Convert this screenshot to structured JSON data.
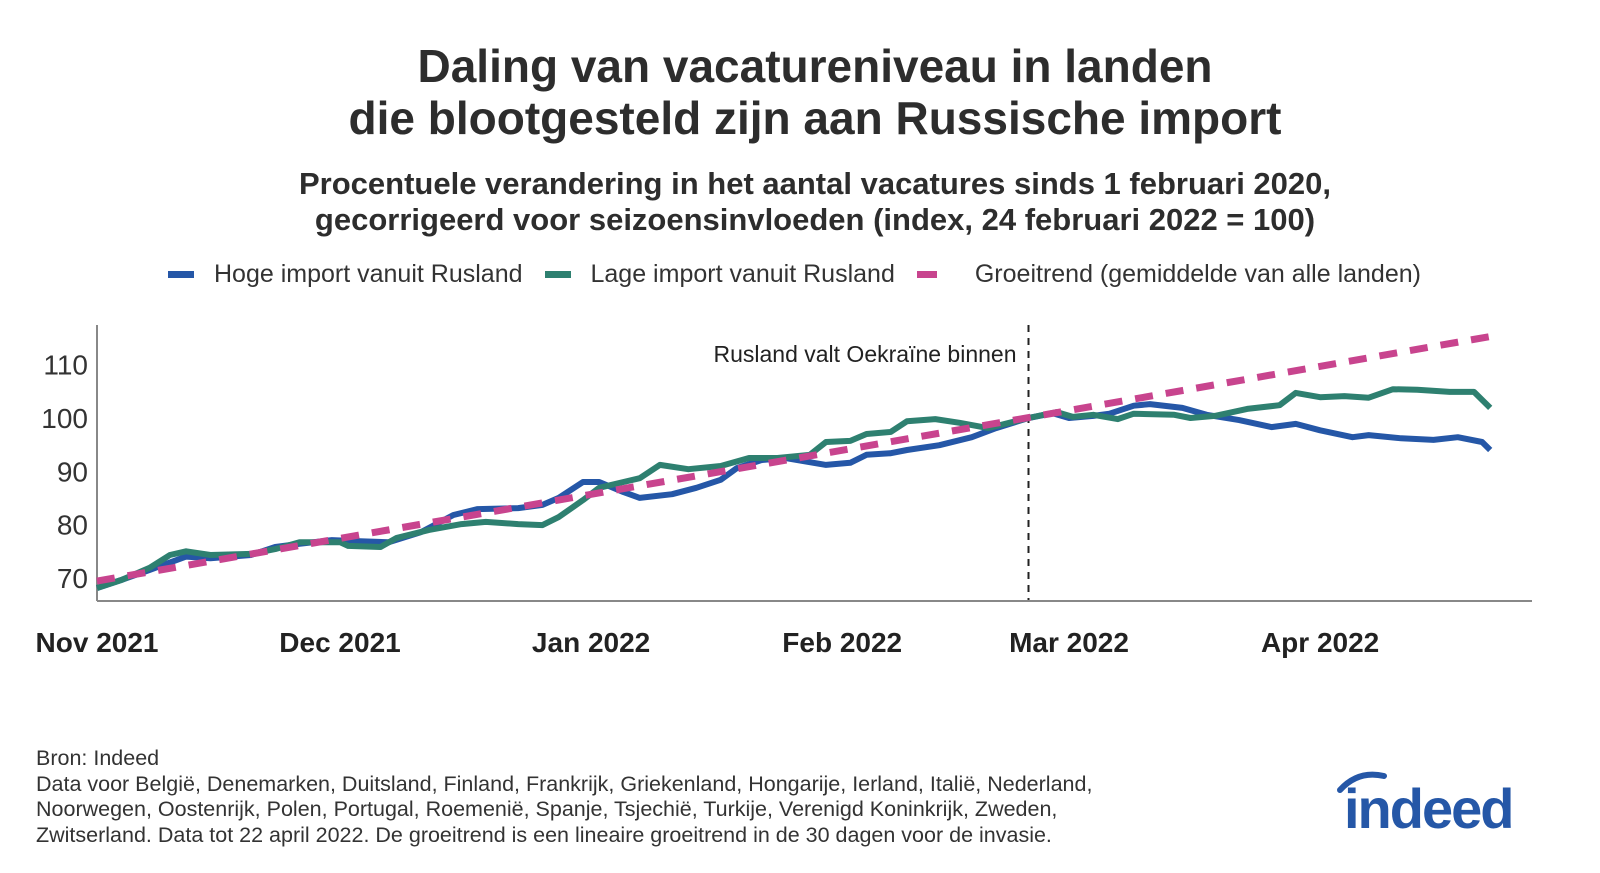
{
  "chart_data": {
    "type": "line",
    "title": "Daling van vacatureniveau in landen die blootgesteld zijn aan Russische import",
    "title_lines": [
      "Daling van vacatureniveau in landen",
      "die blootgesteld zijn aan Russische import"
    ],
    "subtitle_lines": [
      "Procentuele verandering in het aantal vacatures sinds 1 februari 2020,",
      "gecorrigeerd voor seizoensinvloeden (index, 24 februari 2022 = 100)"
    ],
    "x_unit": "days since 2021-11-01",
    "xlim": [
      0,
      177
    ],
    "ylim": [
      67,
      118
    ],
    "y_ticks": [
      70,
      80,
      90,
      100,
      110
    ],
    "x_ticks": [
      {
        "day": 0,
        "label": "Nov 2021"
      },
      {
        "day": 30,
        "label": "Dec 2021"
      },
      {
        "day": 61,
        "label": "Jan 2022"
      },
      {
        "day": 92,
        "label": "Feb 2022"
      },
      {
        "day": 120,
        "label": "Mar 2022"
      },
      {
        "day": 151,
        "label": "Apr 2022"
      }
    ],
    "annotation": {
      "day": 115,
      "label": "Rusland valt Oekraïne binnen"
    },
    "legend_position": "top",
    "series": [
      {
        "name": "Hoge import vanuit Rusland",
        "color": "#2557a7",
        "style": "solid",
        "x": [
          0,
          3,
          6.5,
          11,
          14,
          19,
          22,
          25,
          29,
          32,
          36,
          40,
          44,
          47,
          52,
          55,
          57,
          60,
          62,
          65,
          67,
          71,
          74,
          77,
          79,
          82,
          85,
          88,
          90,
          93,
          95,
          98,
          100,
          104,
          108,
          111,
          115,
          118,
          120,
          123,
          125,
          128,
          130,
          134,
          137,
          141,
          145,
          148,
          151,
          155,
          157,
          161,
          165,
          168,
          171,
          172
        ],
        "y": [
          68.1,
          69.6,
          71.5,
          74.0,
          73.7,
          74.3,
          75.8,
          76.4,
          77.1,
          76.9,
          76.7,
          78.6,
          81.8,
          82.9,
          83.1,
          83.7,
          85.0,
          88.0,
          88.0,
          86.1,
          85.0,
          85.7,
          86.9,
          88.4,
          90.6,
          92.1,
          92.5,
          91.7,
          91.2,
          91.6,
          93.1,
          93.4,
          94.0,
          94.9,
          96.4,
          98.1,
          100,
          100.9,
          100,
          100.4,
          100.8,
          102.3,
          102.6,
          101.9,
          100.6,
          99.6,
          98.3,
          98.9,
          97.7,
          96.4,
          96.8,
          96.2,
          95.9,
          96.4,
          95.5,
          94.0
        ]
      },
      {
        "name": "Lage import vanuit Rusland",
        "color": "#2e8070",
        "style": "solid",
        "x": [
          0,
          3,
          6.5,
          9,
          11,
          14,
          19,
          22,
          25,
          30,
          31,
          35,
          37,
          41,
          45,
          48,
          52,
          55,
          57,
          60,
          62,
          65,
          67,
          69.5,
          73,
          77,
          80.5,
          84,
          88,
          90,
          93,
          95,
          98,
          100,
          103.5,
          106.5,
          110,
          115,
          118.5,
          120.5,
          123,
          126,
          128,
          133,
          135,
          138,
          142,
          146,
          148,
          151,
          154,
          157,
          160,
          163,
          167,
          170,
          172
        ],
        "y": [
          68.1,
          69.6,
          71.9,
          74.3,
          75.0,
          74.3,
          74.5,
          75.4,
          76.7,
          76.7,
          76.0,
          75.8,
          77.5,
          79.0,
          80.1,
          80.5,
          80.1,
          79.9,
          81.4,
          84.6,
          86.9,
          88.0,
          88.7,
          91.2,
          90.4,
          91.0,
          92.5,
          92.5,
          93.1,
          95.5,
          95.7,
          97.0,
          97.4,
          99.4,
          99.8,
          99.1,
          98.1,
          100,
          101.1,
          100.2,
          100.6,
          99.8,
          100.8,
          100.6,
          100,
          100.4,
          101.7,
          102.4,
          104.7,
          103.9,
          104.1,
          103.8,
          105.4,
          105.3,
          104.9,
          104.9,
          101.9
        ]
      },
      {
        "name": "Groeitrend (gemiddelde van alle landen)",
        "color": "#c8448e",
        "style": "dashed",
        "x": [
          0,
          172
        ],
        "y": [
          69.4,
          115.3
        ]
      }
    ]
  },
  "source": "Bron: Indeed",
  "footnote_lines": [
    "Data voor België, Denemarken, Duitsland, Finland, Frankrijk, Griekenland, Hongarije, Ierland, Italië, Nederland,",
    "Noorwegen, Oostenrijk, Polen, Portugal, Roemenië, Spanje, Tsjechië, Turkije, Verenigd Koninkrijk, Zweden,",
    "Zwitserland. Data tot 22 april 2022. De groeitrend is een lineaire groeitrend in de 30 dagen voor de invasie."
  ],
  "logo": "indeed"
}
